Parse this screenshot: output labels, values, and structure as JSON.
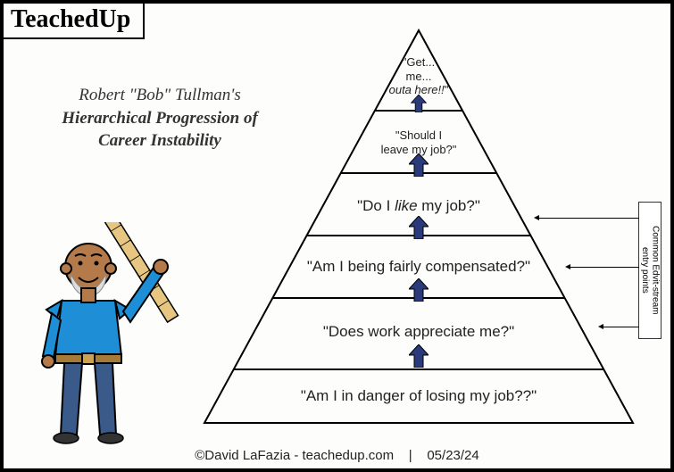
{
  "brand": "TeachedUp",
  "title": {
    "line1": "Robert \"Bob\" Tullman's",
    "line2": "Hierarchical Progression of",
    "line3": "Career Instability"
  },
  "pyramid": {
    "type": "pyramid",
    "stroke_color": "#000000",
    "stroke_width": 2,
    "background": "#fdfdfb",
    "arrow_fill": "#2a3a7a",
    "arrow_stroke": "#000000",
    "levels": [
      {
        "text": "\"Am I in danger of losing my job??\"",
        "italic": false
      },
      {
        "text": "\"Does work appreciate me?\"",
        "italic": false
      },
      {
        "text": "\"Am I being fairly compensated?\"",
        "italic": false
      },
      {
        "text_html": "\"Do I <i>like</i> my job?\"",
        "italic": false
      },
      {
        "text": "\"Should I\nleave my job?\"",
        "italic": false,
        "small": true
      },
      {
        "text_html": "\"Get...<br>me...<br><i>outa here!!</i>\"",
        "italic": false,
        "small": true
      }
    ],
    "label_font": "Arial",
    "label_fontsize": 17,
    "label_fontsize_small": 13
  },
  "sidebox": {
    "text": "Common Edvit-stream\nentry points",
    "fontsize": 10,
    "border_color": "#333333",
    "lead_levels": [
      2,
      3,
      4
    ]
  },
  "figure": {
    "skin": "#b47a4a",
    "shirt": "#1e8fd6",
    "pants": "#3a5a8a",
    "belt": "#a57b3a",
    "ruler": "#e6c680",
    "outline": "#000000"
  },
  "footer": {
    "copyright": "©David LaFazia - teachedup.com",
    "sep": "|",
    "date": "05/23/24"
  },
  "colors": {
    "frame_border": "#000000",
    "page_bg": "#fdfdfb"
  }
}
